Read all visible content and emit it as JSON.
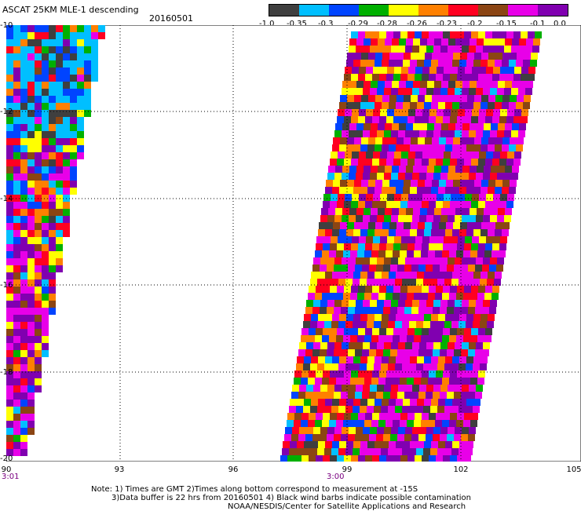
{
  "header": {
    "title": "ASCAT 25KM MLE-1 descending",
    "date": "20160501"
  },
  "colorbar": {
    "colors": [
      "#3f3f3f",
      "#00bfff",
      "#0044ff",
      "#00b000",
      "#ffff00",
      "#ff8000",
      "#ff0020",
      "#8b4513",
      "#e800e8",
      "#8000b0"
    ],
    "labels": [
      "-1.0",
      "-0.35",
      "-0.3",
      "-0.29",
      "-0.28",
      "-0.26",
      "-0.23",
      "-0.2",
      "-0.15",
      "-0.1",
      "0.0"
    ]
  },
  "axes": {
    "lat_labels": [
      "-10",
      "-12",
      "-14",
      "-16",
      "-18",
      "-20"
    ],
    "lon_labels": [
      "90",
      "93",
      "96",
      "99",
      "102",
      "105"
    ],
    "time_labels": [
      "3:01",
      "3:00"
    ]
  },
  "notes": {
    "line1": "Note: 1) Times are GMT 2)Times along bottom correspond to measurement at -15S",
    "line2": "3)Data buffer is 22 hrs from 20160501 4) Black wind barbs indicate possible contamination",
    "line3": "NOAA/NESDIS/Center for Satellite Applications and Research"
  }
}
